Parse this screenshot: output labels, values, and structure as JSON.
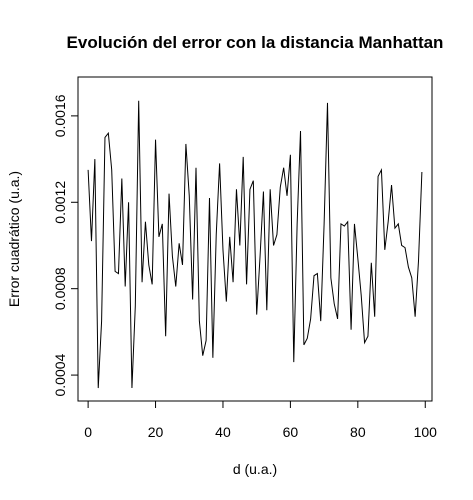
{
  "chart_data": {
    "type": "line",
    "title": "Evolución del error con la distancia Manhattan",
    "xlabel": "d (u.a.)",
    "ylabel": "Error cuadrático (u.a.)",
    "xlim": [
      -3,
      102
    ],
    "ylim": [
      0.00028,
      0.00178
    ],
    "grid": false,
    "legend": "none",
    "line_color": "#000000",
    "x_ticks": [
      0,
      20,
      40,
      60,
      80,
      100
    ],
    "x_tick_labels": [
      "0",
      "20",
      "40",
      "60",
      "80",
      "100"
    ],
    "y_ticks": [
      0.0004,
      0.0008,
      0.0012,
      0.0016
    ],
    "y_tick_labels": [
      "0.0004",
      "0.0008",
      "0.0012",
      "0.0016"
    ],
    "series": [
      {
        "x": [
          0,
          1,
          2,
          3,
          4,
          5,
          6,
          7,
          8,
          9,
          10,
          11,
          12,
          13,
          14,
          15,
          16,
          17,
          18,
          19,
          20,
          21,
          22,
          23,
          24,
          25,
          26,
          27,
          28,
          29,
          30,
          31,
          32,
          33,
          34,
          35,
          36,
          37,
          38,
          39,
          40,
          41,
          42,
          43,
          44,
          45,
          46,
          47,
          48,
          49,
          50,
          51,
          52,
          53,
          54,
          55,
          56,
          57,
          58,
          59,
          60,
          61,
          62,
          63,
          64,
          65,
          66,
          67,
          68,
          69,
          70,
          71,
          72,
          73,
          74,
          75,
          76,
          77,
          78,
          79,
          80,
          81,
          82,
          83,
          84,
          85,
          86,
          87,
          88,
          89,
          90,
          91,
          92,
          93,
          94,
          95,
          96,
          97,
          98,
          99
        ],
        "y": [
          0.00135,
          0.00102,
          0.0014,
          0.00034,
          0.00065,
          0.0015,
          0.00152,
          0.00135,
          0.00088,
          0.00087,
          0.00131,
          0.00081,
          0.0012,
          0.00034,
          0.00072,
          0.00167,
          0.00083,
          0.00111,
          0.00091,
          0.00082,
          0.00149,
          0.00104,
          0.0011,
          0.00058,
          0.00124,
          0.00095,
          0.00081,
          0.00101,
          0.00091,
          0.00147,
          0.00123,
          0.00075,
          0.00136,
          0.00065,
          0.00049,
          0.00056,
          0.00122,
          0.00048,
          0.00105,
          0.00138,
          0.00098,
          0.00074,
          0.00104,
          0.00083,
          0.00126,
          0.001,
          0.00141,
          0.00082,
          0.00126,
          0.0013,
          0.00068,
          0.00095,
          0.00125,
          0.0007,
          0.00126,
          0.001,
          0.00105,
          0.00127,
          0.00136,
          0.00123,
          0.00142,
          0.00046,
          0.0011,
          0.00153,
          0.00054,
          0.00057,
          0.00066,
          0.00086,
          0.00087,
          0.00065,
          0.0011,
          0.00166,
          0.00085,
          0.00073,
          0.00066,
          0.0011,
          0.00109,
          0.00111,
          0.00061,
          0.0011,
          0.00094,
          0.00077,
          0.00055,
          0.00058,
          0.00092,
          0.00067,
          0.00132,
          0.00135,
          0.00098,
          0.00111,
          0.00128,
          0.00108,
          0.0011,
          0.001,
          0.00099,
          0.0009,
          0.00085,
          0.00067,
          0.00093,
          0.00134
        ]
      }
    ]
  }
}
